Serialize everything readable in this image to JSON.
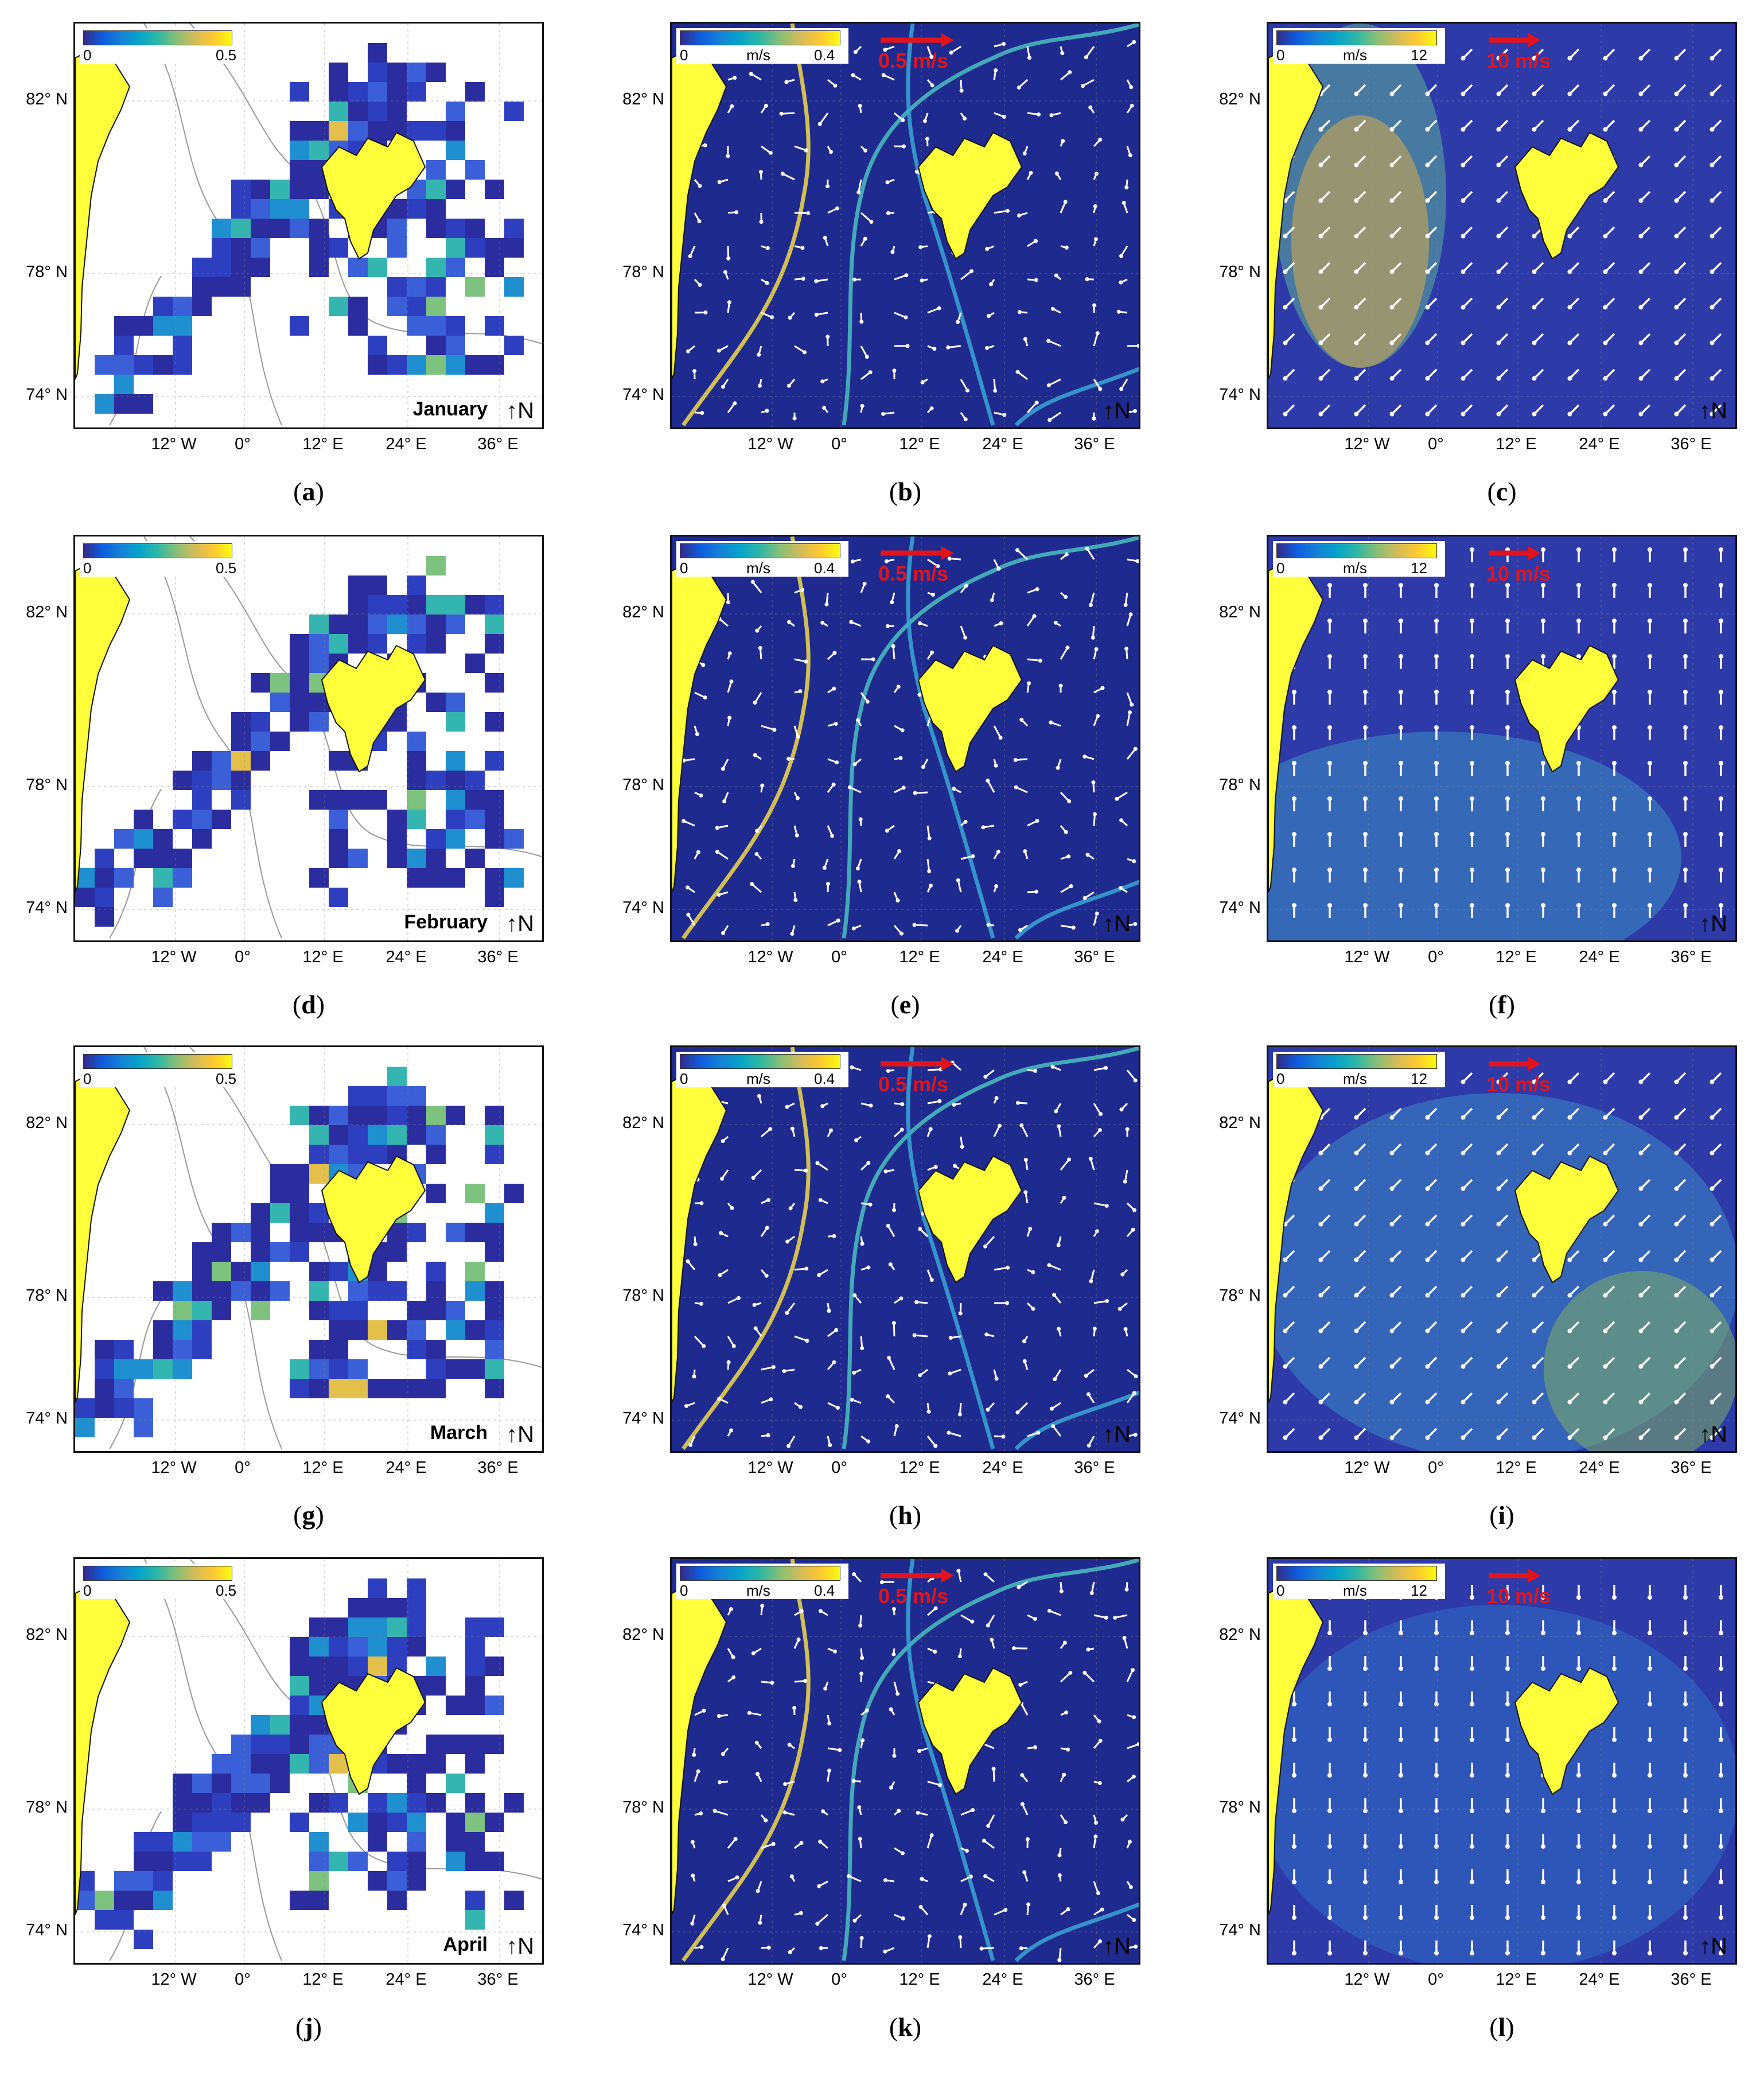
{
  "colors": {
    "land": "#ffff3c",
    "arrow": "#ffffff",
    "scale_arrow": "#e3131b",
    "contour": "#999999"
  },
  "axes": {
    "lat_labels": [
      "82° N",
      "78° N",
      "74° N"
    ],
    "lon_labels": [
      "12° W",
      "0°",
      "12° E",
      "24° E",
      "36° E"
    ]
  },
  "north_label": "N",
  "sea_ice": {
    "colorbar": {
      "min": "0",
      "max": "0.5"
    },
    "months": [
      "January",
      "February",
      "March",
      "April"
    ]
  },
  "current": {
    "colorbar": {
      "min": "0",
      "unit": "m/s",
      "max": "0.4"
    },
    "scale": "0.5 m/s"
  },
  "wind": {
    "colorbar": {
      "min": "0",
      "unit": "m/s",
      "max": "12"
    },
    "scale": "10 m/s"
  },
  "panel_labels": [
    "a",
    "b",
    "c",
    "d",
    "e",
    "f",
    "g",
    "h",
    "i",
    "j",
    "k",
    "l"
  ],
  "wind_directions_deg": [
    225,
    0,
    225,
    180
  ]
}
